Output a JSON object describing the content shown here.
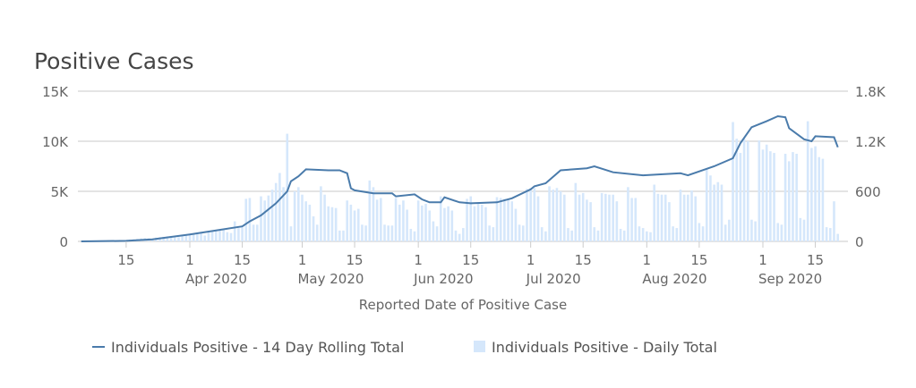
{
  "chart_data": {
    "type": "bar+line",
    "title": "Positive Cases",
    "xlabel": "Reported Date of Positive Case",
    "y_left": {
      "ylim": [
        0,
        15000
      ],
      "ticks": [
        {
          "v": 0,
          "label": "0"
        },
        {
          "v": 5000,
          "label": "5K"
        },
        {
          "v": 10000,
          "label": "10K"
        },
        {
          "v": 15000,
          "label": "15K"
        }
      ]
    },
    "y_right": {
      "ylim": [
        0,
        1800
      ],
      "ticks": [
        {
          "v": 0,
          "label": "0"
        },
        {
          "v": 600,
          "label": "600"
        },
        {
          "v": 1200,
          "label": "1.2K"
        },
        {
          "v": 1800,
          "label": "1.8K"
        }
      ]
    },
    "grid": true,
    "legend_position": "bottom",
    "x_ticks": [
      {
        "date": "2020-03-15",
        "label": "15",
        "month": ""
      },
      {
        "date": "2020-04-01",
        "label": "1",
        "month": "Apr 2020"
      },
      {
        "date": "2020-04-15",
        "label": "15",
        "month": ""
      },
      {
        "date": "2020-05-01",
        "label": "1",
        "month": "May 2020"
      },
      {
        "date": "2020-05-15",
        "label": "15",
        "month": ""
      },
      {
        "date": "2020-06-01",
        "label": "1",
        "month": "Jun 2020"
      },
      {
        "date": "2020-06-15",
        "label": "15",
        "month": ""
      },
      {
        "date": "2020-07-01",
        "label": "1",
        "month": "Jul 2020"
      },
      {
        "date": "2020-07-15",
        "label": "15",
        "month": ""
      },
      {
        "date": "2020-08-01",
        "label": "1",
        "month": "Aug 2020"
      },
      {
        "date": "2020-08-15",
        "label": "15",
        "month": ""
      },
      {
        "date": "2020-09-01",
        "label": "1",
        "month": "Sep 2020"
      },
      {
        "date": "2020-09-15",
        "label": "15",
        "month": ""
      }
    ],
    "series": [
      {
        "name": "Individuals Positive - 14 Day Rolling Total",
        "type": "line",
        "axis": "left",
        "color": "#4a7bab",
        "points": [
          [
            "2020-03-03",
            0
          ],
          [
            "2020-03-15",
            50
          ],
          [
            "2020-03-22",
            200
          ],
          [
            "2020-04-01",
            700
          ],
          [
            "2020-04-08",
            1100
          ],
          [
            "2020-04-15",
            1500
          ],
          [
            "2020-04-17",
            2000
          ],
          [
            "2020-04-20",
            2600
          ],
          [
            "2020-04-24",
            3800
          ],
          [
            "2020-04-27",
            5000
          ],
          [
            "2020-04-28",
            6000
          ],
          [
            "2020-04-30",
            6500
          ],
          [
            "2020-05-02",
            7200
          ],
          [
            "2020-05-08",
            7100
          ],
          [
            "2020-05-11",
            7100
          ],
          [
            "2020-05-13",
            6800
          ],
          [
            "2020-05-14",
            5300
          ],
          [
            "2020-05-15",
            5100
          ],
          [
            "2020-05-20",
            4800
          ],
          [
            "2020-05-25",
            4800
          ],
          [
            "2020-05-26",
            4500
          ],
          [
            "2020-05-31",
            4700
          ],
          [
            "2020-06-02",
            4200
          ],
          [
            "2020-06-04",
            3900
          ],
          [
            "2020-06-07",
            3900
          ],
          [
            "2020-06-08",
            4400
          ],
          [
            "2020-06-12",
            3900
          ],
          [
            "2020-06-15",
            3800
          ],
          [
            "2020-06-22",
            3900
          ],
          [
            "2020-06-26",
            4300
          ],
          [
            "2020-07-01",
            5200
          ],
          [
            "2020-07-02",
            5500
          ],
          [
            "2020-07-05",
            5800
          ],
          [
            "2020-07-09",
            7100
          ],
          [
            "2020-07-16",
            7300
          ],
          [
            "2020-07-18",
            7500
          ],
          [
            "2020-07-23",
            6900
          ],
          [
            "2020-07-31",
            6600
          ],
          [
            "2020-08-10",
            6800
          ],
          [
            "2020-08-12",
            6600
          ],
          [
            "2020-08-19",
            7500
          ],
          [
            "2020-08-24",
            8300
          ],
          [
            "2020-08-26",
            9800
          ],
          [
            "2020-08-29",
            11400
          ],
          [
            "2020-09-02",
            12000
          ],
          [
            "2020-09-05",
            12500
          ],
          [
            "2020-09-07",
            12400
          ],
          [
            "2020-09-08",
            11300
          ],
          [
            "2020-09-12",
            10200
          ],
          [
            "2020-09-14",
            10000
          ],
          [
            "2020-09-15",
            10500
          ],
          [
            "2020-09-20",
            10400
          ],
          [
            "2020-09-21",
            9400
          ]
        ]
      },
      {
        "name": "Individuals Positive - Daily Total",
        "type": "bar",
        "axis": "right",
        "color": "#d5e7fb",
        "start_date": "2020-03-03",
        "values": [
          0,
          0,
          0,
          1,
          2,
          1,
          2,
          3,
          5,
          8,
          10,
          12,
          15,
          20,
          25,
          30,
          35,
          40,
          38,
          30,
          45,
          50,
          55,
          60,
          65,
          55,
          50,
          70,
          75,
          80,
          85,
          90,
          100,
          70,
          110,
          120,
          130,
          140,
          150,
          110,
          100,
          240,
          160,
          170,
          510,
          520,
          200,
          200,
          540,
          490,
          550,
          620,
          700,
          820,
          650,
          1290,
          180,
          600,
          650,
          560,
          480,
          440,
          300,
          200,
          660,
          560,
          420,
          410,
          400,
          130,
          130,
          490,
          440,
          370,
          390,
          200,
          190,
          730,
          650,
          500,
          520,
          200,
          190,
          190,
          520,
          440,
          490,
          380,
          150,
          120,
          490,
          430,
          450,
          370,
          240,
          180,
          540,
          400,
          420,
          370,
          130,
          90,
          160,
          510,
          540,
          420,
          450,
          440,
          410,
          190,
          170,
          530,
          520,
          510,
          510,
          480,
          390,
          200,
          190,
          630,
          640,
          640,
          540,
          170,
          120,
          660,
          620,
          640,
          600,
          560,
          160,
          130,
          700,
          560,
          580,
          500,
          470,
          170,
          130,
          580,
          570,
          560,
          560,
          480,
          150,
          130,
          650,
          520,
          520,
          180,
          160,
          120,
          110,
          680,
          570,
          560,
          560,
          470,
          180,
          160,
          620,
          560,
          560,
          610,
          540,
          220,
          180,
          870,
          790,
          680,
          710,
          680,
          200,
          260,
          1430,
          1230,
          1060,
          1230,
          1200,
          260,
          240,
          1210,
          1100,
          1160,
          1080,
          1060,
          220,
          200,
          1050,
          960,
          1070,
          1050,
          280,
          260,
          1440,
          1120,
          1140,
          1010,
          990,
          170,
          160,
          480,
          90
        ]
      }
    ]
  }
}
